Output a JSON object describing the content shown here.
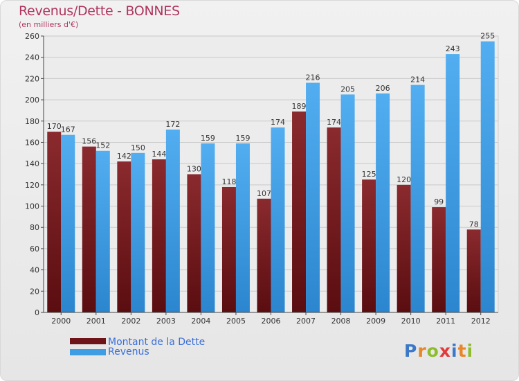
{
  "chart_data": {
    "type": "bar",
    "title": "Revenus/Dette - BONNES",
    "subtitle": "(en milliers d'€)",
    "categories": [
      "2000",
      "2001",
      "2002",
      "2003",
      "2004",
      "2005",
      "2006",
      "2007",
      "2008",
      "2009",
      "2010",
      "2011",
      "2012"
    ],
    "series": [
      {
        "name": "Montant de la Dette",
        "color": "#7a1e23",
        "values": [
          170,
          156,
          142,
          144,
          130,
          118,
          107,
          189,
          174,
          125,
          120,
          99,
          78
        ]
      },
      {
        "name": "Revenus",
        "color": "#3f9ee3",
        "values": [
          167,
          152,
          150,
          172,
          159,
          159,
          174,
          216,
          205,
          206,
          214,
          243,
          255
        ]
      }
    ],
    "ylim": [
      0,
      260
    ],
    "yticks": [
      0,
      20,
      40,
      60,
      80,
      100,
      120,
      140,
      160,
      180,
      200,
      220,
      240,
      260
    ],
    "grid": true,
    "legend": "bottom-left"
  },
  "logo": {
    "letters": [
      {
        "ch": "P",
        "color": "#3c78c8"
      },
      {
        "ch": "r",
        "color": "#e8862a"
      },
      {
        "ch": "o",
        "color": "#8cbd2c"
      },
      {
        "ch": "x",
        "color": "#e03a3a"
      },
      {
        "ch": "i",
        "color": "#3c78c8"
      },
      {
        "ch": "t",
        "color": "#e8862a"
      },
      {
        "ch": "i",
        "color": "#8cbd2c"
      }
    ]
  }
}
